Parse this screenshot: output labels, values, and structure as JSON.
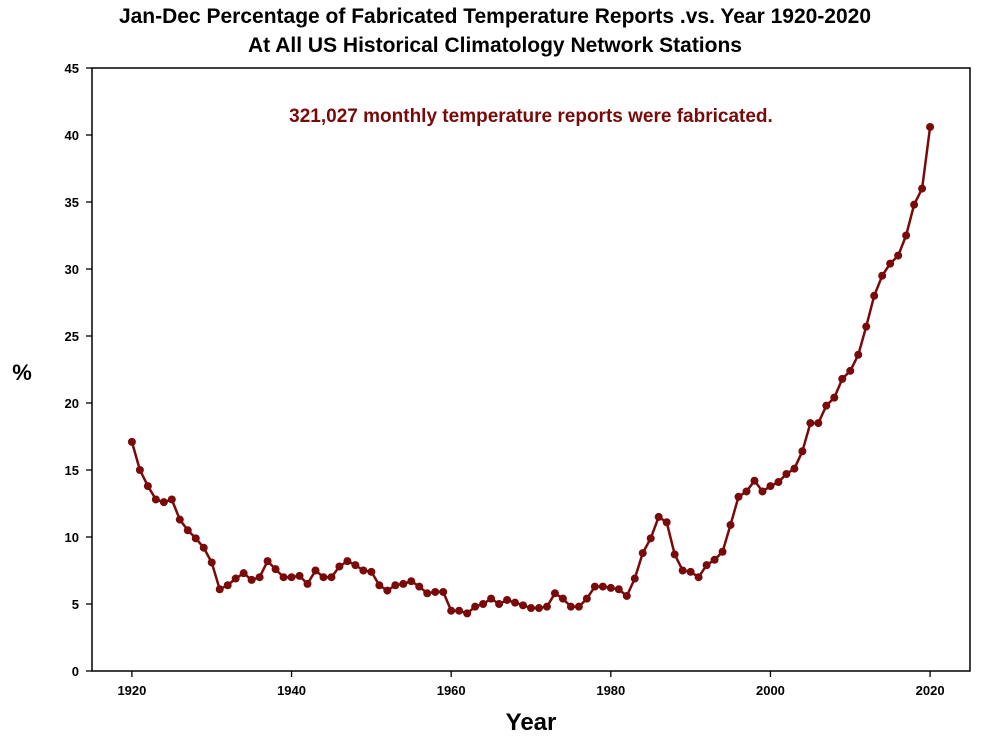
{
  "chart_data": {
    "type": "line",
    "title": "Jan-Dec Percentage of Fabricated Temperature Reports .vs. Year 1920-2020",
    "subtitle": "At All US Historical Climatology Network Stations",
    "annotation": "321,027 monthly temperature reports were fabricated.",
    "xlabel": "Year",
    "ylabel": "%",
    "xlim": [
      1915,
      2025
    ],
    "ylim": [
      0,
      45
    ],
    "xticks": [
      1920,
      1940,
      1960,
      1980,
      2000,
      2020
    ],
    "yticks": [
      0,
      5,
      10,
      15,
      20,
      25,
      30,
      35,
      40,
      45
    ],
    "series_color": "#7a0a0a",
    "annotation_color": "#7a0a0a",
    "x": [
      1920,
      1921,
      1922,
      1923,
      1924,
      1925,
      1926,
      1927,
      1928,
      1929,
      1930,
      1931,
      1932,
      1933,
      1934,
      1935,
      1936,
      1937,
      1938,
      1939,
      1940,
      1941,
      1942,
      1943,
      1944,
      1945,
      1946,
      1947,
      1948,
      1949,
      1950,
      1951,
      1952,
      1953,
      1954,
      1955,
      1956,
      1957,
      1958,
      1959,
      1960,
      1961,
      1962,
      1963,
      1964,
      1965,
      1966,
      1967,
      1968,
      1969,
      1970,
      1971,
      1972,
      1973,
      1974,
      1975,
      1976,
      1977,
      1978,
      1979,
      1980,
      1981,
      1982,
      1983,
      1984,
      1985,
      1986,
      1987,
      1988,
      1989,
      1990,
      1991,
      1992,
      1993,
      1994,
      1995,
      1996,
      1997,
      1998,
      1999,
      2000,
      2001,
      2002,
      2003,
      2004,
      2005,
      2006,
      2007,
      2008,
      2009,
      2010,
      2011,
      2012,
      2013,
      2014,
      2015,
      2016,
      2017,
      2018,
      2019,
      2020
    ],
    "y": [
      17.1,
      15.0,
      13.8,
      12.8,
      12.6,
      12.8,
      11.3,
      10.5,
      9.9,
      9.2,
      8.1,
      6.1,
      6.4,
      6.9,
      7.3,
      6.8,
      7.0,
      8.2,
      7.6,
      7.0,
      7.0,
      7.1,
      6.5,
      7.5,
      7.0,
      7.0,
      7.8,
      8.2,
      7.9,
      7.5,
      7.4,
      6.4,
      6.0,
      6.4,
      6.5,
      6.7,
      6.3,
      5.8,
      5.9,
      5.9,
      4.5,
      4.5,
      4.3,
      4.8,
      5.0,
      5.4,
      5.0,
      5.3,
      5.1,
      4.9,
      4.7,
      4.7,
      4.8,
      5.8,
      5.4,
      4.8,
      4.8,
      5.4,
      6.3,
      6.3,
      6.2,
      6.1,
      5.6,
      6.9,
      8.8,
      9.9,
      11.5,
      11.1,
      8.7,
      7.5,
      7.4,
      7.0,
      7.9,
      8.3,
      8.9,
      10.9,
      13.0,
      13.4,
      14.2,
      13.4,
      13.8,
      14.1,
      14.7,
      15.1,
      16.4,
      18.5,
      18.5,
      19.8,
      20.4,
      21.8,
      22.4,
      23.6,
      25.7,
      28.0,
      29.5,
      30.4,
      31.0,
      32.5,
      34.8,
      36.0,
      40.6
    ]
  }
}
